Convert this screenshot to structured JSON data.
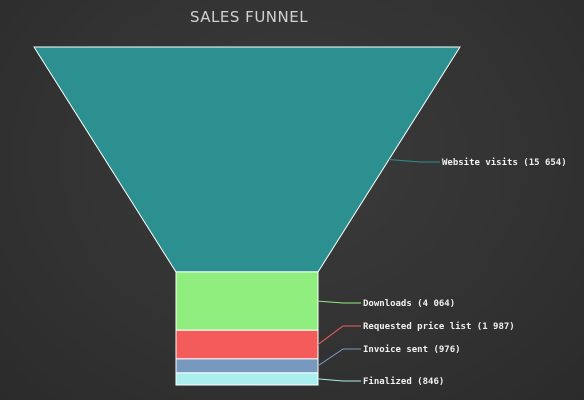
{
  "chart_data": {
    "type": "funnel",
    "title": "SALES FUNNEL",
    "stages": [
      {
        "name": "Website visits",
        "value": 15654,
        "label": "Website visits (15 654)",
        "color": "#2b908f"
      },
      {
        "name": "Downloads",
        "value": 4064,
        "label": "Downloads (4 064)",
        "color": "#90ee7e"
      },
      {
        "name": "Requested price list",
        "value": 1987,
        "label": "Requested price list (1 987)",
        "color": "#f45b5b"
      },
      {
        "name": "Invoice sent",
        "value": 976,
        "label": "Invoice sent (976)",
        "color": "#7798bf"
      },
      {
        "name": "Finalized",
        "value": 846,
        "label": "Finalized (846)",
        "color": "#aaeeee"
      }
    ]
  }
}
